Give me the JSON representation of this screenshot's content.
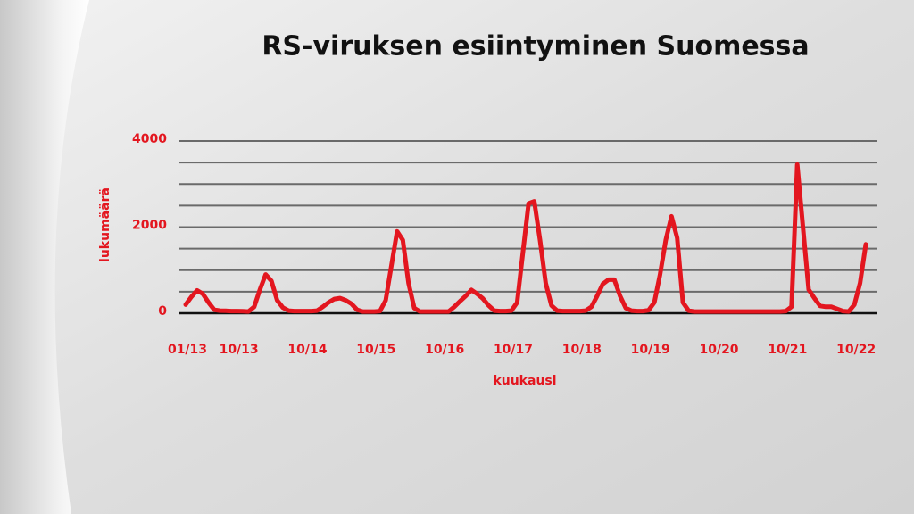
{
  "chart_data": {
    "type": "line",
    "title": "RS-viruksen esiintyminen Suomessa",
    "y_label": "lukumäärä",
    "x_label": "kuukausi",
    "color": "#e3161f",
    "categories": [
      "01/13",
      null,
      null,
      null,
      null,
      null,
      null,
      null,
      null,
      "10/13",
      null,
      null,
      null,
      null,
      null,
      null,
      null,
      null,
      null,
      null,
      null,
      "10/14",
      null,
      null,
      null,
      null,
      null,
      null,
      null,
      null,
      null,
      null,
      null,
      "10/15",
      null,
      null,
      null,
      null,
      null,
      null,
      null,
      null,
      null,
      null,
      null,
      "10/16",
      null,
      null,
      null,
      null,
      null,
      null,
      null,
      null,
      null,
      null,
      null,
      "10/17",
      null,
      null,
      null,
      null,
      null,
      null,
      null,
      null,
      null,
      null,
      null,
      "10/18",
      null,
      null,
      null,
      null,
      null,
      null,
      null,
      null,
      null,
      null,
      null,
      "10/19",
      null,
      null,
      null,
      null,
      null,
      null,
      null,
      null,
      null,
      null,
      null,
      "10/20",
      null,
      null,
      null,
      null,
      null,
      null,
      null,
      null,
      null,
      null,
      null,
      "10/21",
      null,
      null,
      null,
      null,
      null,
      null,
      null,
      null,
      null,
      null,
      null,
      "10/22",
      null,
      null
    ],
    "values": [
      200,
      380,
      530,
      450,
      250,
      80,
      60,
      55,
      50,
      50,
      45,
      40,
      150,
      550,
      900,
      750,
      300,
      130,
      60,
      50,
      50,
      50,
      50,
      60,
      150,
      250,
      330,
      350,
      300,
      220,
      80,
      40,
      40,
      40,
      50,
      300,
      1100,
      1900,
      1700,
      700,
      120,
      40,
      40,
      40,
      40,
      40,
      40,
      150,
      280,
      400,
      540,
      450,
      340,
      180,
      60,
      50,
      50,
      60,
      250,
      1400,
      2550,
      2600,
      1700,
      700,
      180,
      60,
      50,
      50,
      50,
      50,
      60,
      150,
      400,
      680,
      780,
      780,
      400,
      120,
      60,
      50,
      50,
      70,
      250,
      900,
      1700,
      2250,
      1750,
      250,
      60,
      40,
      40,
      40,
      40,
      40,
      40,
      40,
      40,
      40,
      40,
      40,
      40,
      40,
      40,
      40,
      40,
      50,
      150,
      3450,
      2000,
      550,
      350,
      170,
      150,
      150,
      100,
      50,
      40,
      200,
      700,
      1600
    ],
    "ylim": [
      0,
      4000
    ],
    "yticks": [
      0,
      2000,
      4000
    ],
    "ygrid": [
      0,
      500,
      1000,
      1500,
      2000,
      2500,
      3000,
      3500,
      4000
    ],
    "grid": true
  }
}
